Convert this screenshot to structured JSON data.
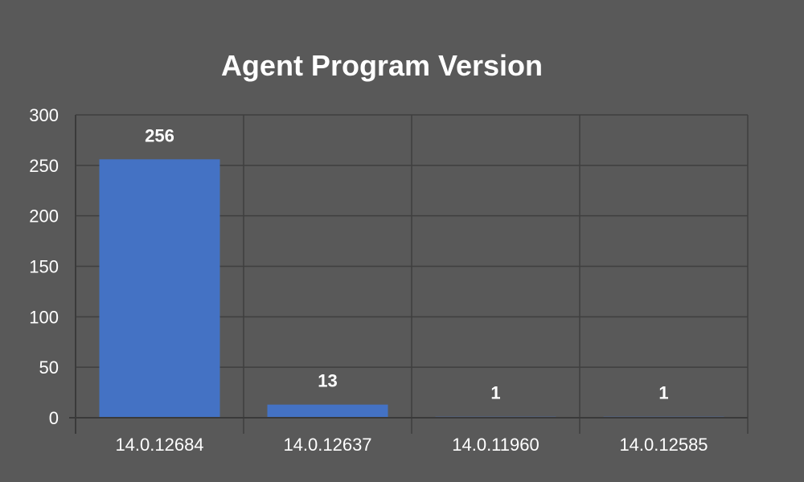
{
  "chart_data": {
    "type": "bar",
    "title": "Agent Program Version",
    "categories": [
      "14.0.12684",
      "14.0.12637",
      "14.0.11960",
      "14.0.12585"
    ],
    "values": [
      256,
      13,
      1,
      1
    ],
    "data_labels": [
      "256",
      "13",
      "1",
      "1"
    ],
    "y_ticks": [
      "0",
      "50",
      "100",
      "150",
      "200",
      "250",
      "300"
    ],
    "ylim": [
      0,
      300
    ],
    "grid": true,
    "legend": "none",
    "colors": {
      "background": "#595959",
      "bar": "#4472c4",
      "grid": "#3f3f3f",
      "axis": "#3a3a3a",
      "text": "#ffffff"
    }
  }
}
